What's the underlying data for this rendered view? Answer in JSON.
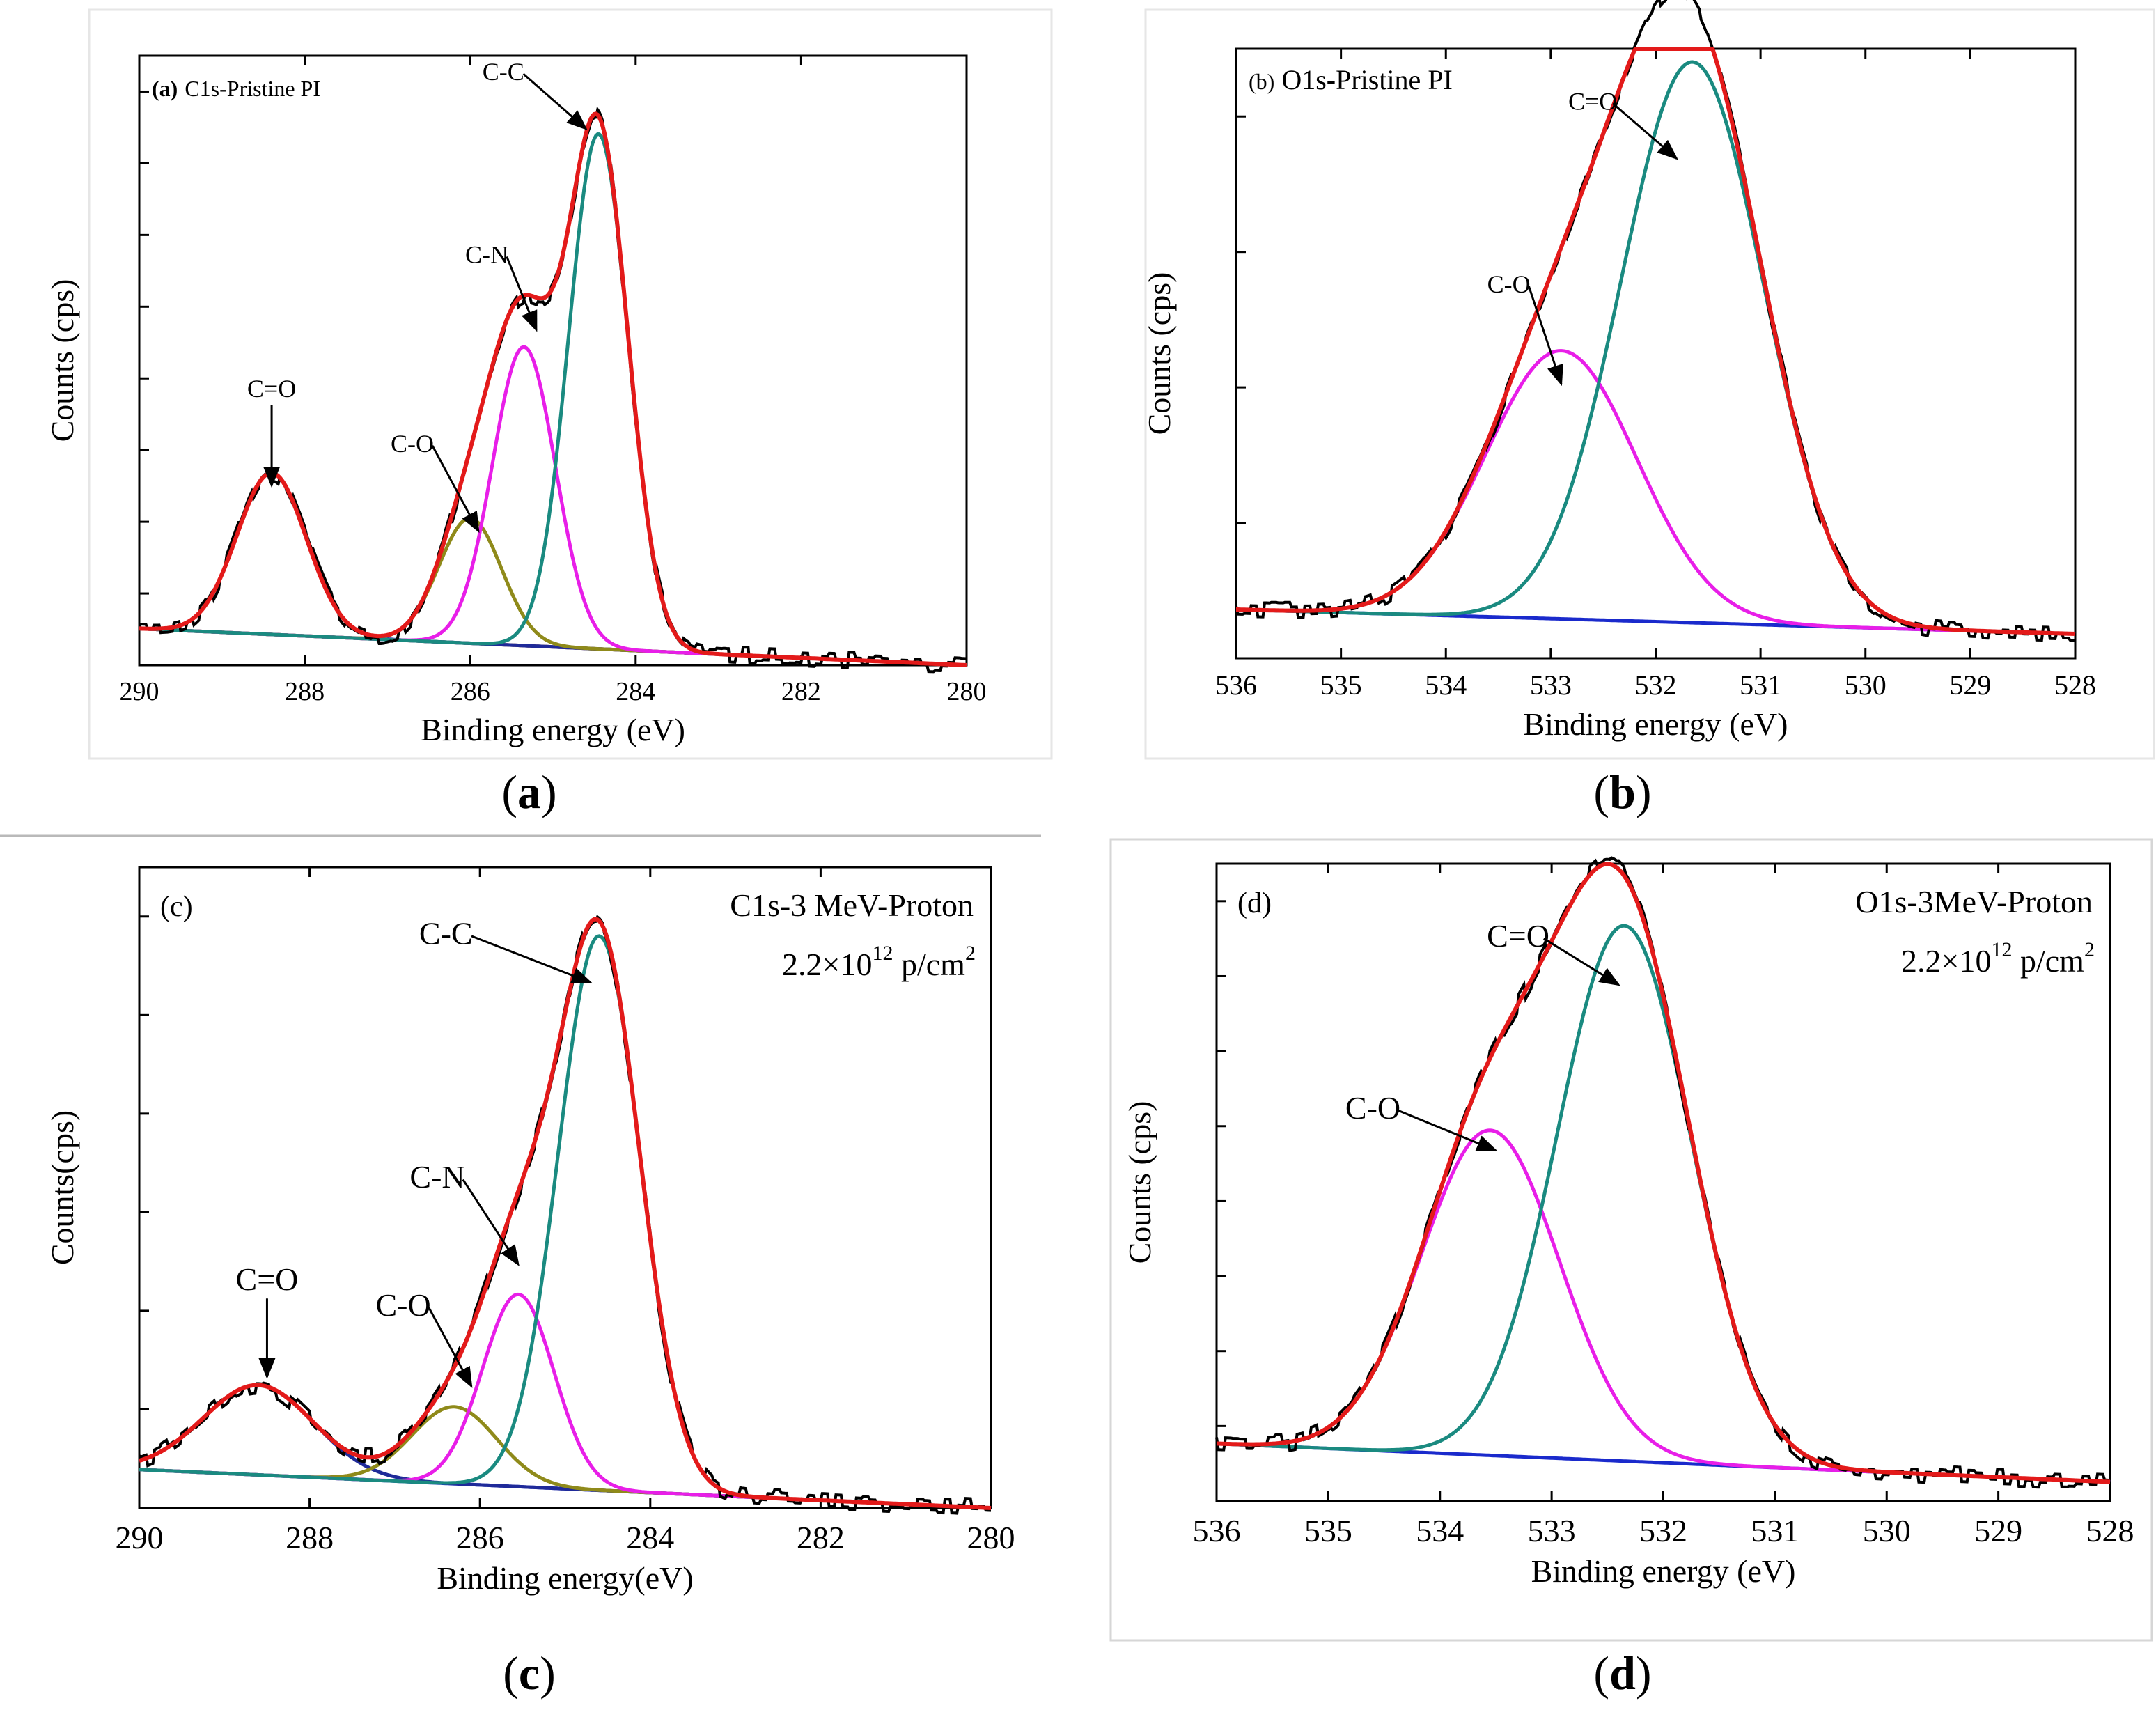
{
  "chart_data": [
    {
      "id": "a",
      "type": "line",
      "inset_label": "(a)",
      "title": "C1s-Pristine PI",
      "caption": "a",
      "xlabel": "Binding energy (eV)",
      "ylabel": "Counts (cps)",
      "xlim": [
        290,
        280
      ],
      "ylim": [
        0,
        1.0
      ],
      "xticks": [
        "290",
        "288",
        "286",
        "284",
        "282",
        "280"
      ],
      "xtick_values": [
        290,
        288,
        286,
        284,
        282,
        280
      ],
      "ytick_count": 8,
      "background": {
        "name": "background",
        "color": "#6b1a1a",
        "start": 0.06,
        "end": 0.0,
        "x_start": 290,
        "x_end": 280
      },
      "peaks": [
        {
          "name": "C=O",
          "center": 288.4,
          "height": 0.265,
          "sigma": 0.42,
          "color": "#1f2a99",
          "on_background": true
        },
        {
          "name": "C-O",
          "center": 286.0,
          "height": 0.205,
          "sigma": 0.38,
          "color": "#8f8a1a",
          "on_background": true
        },
        {
          "name": "C-N",
          "center": 285.35,
          "height": 0.49,
          "sigma": 0.38,
          "color": "#e81ee8",
          "on_background": true
        },
        {
          "name": "C-C",
          "center": 284.45,
          "height": 0.845,
          "sigma": 0.36,
          "color": "#1a8a80",
          "on_background": true
        }
      ],
      "envelope": {
        "name": "fit",
        "color": "#e31a1a"
      },
      "raw": {
        "name": "experimental",
        "color": "#000000"
      },
      "annotations": [
        {
          "text": "C=O",
          "x": 288.4,
          "y": 0.29,
          "label_x": 288.4,
          "label_y": 0.44,
          "style": "down"
        },
        {
          "text": "C-O",
          "x": 285.9,
          "y": 0.22,
          "label_x": 286.7,
          "label_y": 0.35,
          "style": "line"
        },
        {
          "text": "C-N",
          "x": 285.2,
          "y": 0.55,
          "label_x": 285.8,
          "label_y": 0.66,
          "style": "line"
        },
        {
          "text": "C-C",
          "x": 284.6,
          "y": 0.88,
          "label_x": 285.6,
          "label_y": 0.96,
          "style": "line"
        }
      ]
    },
    {
      "id": "b",
      "type": "line",
      "inset_label": "(b)",
      "title": "O1s-Pristine PI",
      "caption": "b",
      "xlabel": "Binding energy (eV)",
      "ylabel": "Counts (cps)",
      "xlim": [
        536,
        528
      ],
      "ylim": [
        0,
        1.0
      ],
      "xticks": [
        "536",
        "535",
        "534",
        "533",
        "532",
        "531",
        "530",
        "529",
        "528"
      ],
      "xtick_values": [
        536,
        535,
        534,
        533,
        532,
        531,
        530,
        529,
        528
      ],
      "ytick_count": 4,
      "background": {
        "name": "background",
        "color": "#1a2acc",
        "start": 0.08,
        "end": 0.04,
        "x_start": 536,
        "x_end": 528
      },
      "peaks": [
        {
          "name": "C-O",
          "center": 532.9,
          "height": 0.44,
          "sigma": 0.72,
          "color": "#e81ee8",
          "on_background": false
        },
        {
          "name": "C=O",
          "center": 531.65,
          "height": 0.92,
          "sigma": 0.68,
          "color": "#1a8a80",
          "on_background": false
        }
      ],
      "envelope": {
        "name": "fit",
        "color": "#e31a1a"
      },
      "raw": {
        "name": "experimental",
        "color": "#000000"
      },
      "annotations": [
        {
          "text": "C=O",
          "x": 531.8,
          "y": 0.82,
          "label_x": 532.6,
          "label_y": 0.9,
          "style": "line"
        },
        {
          "text": "C-O",
          "x": 532.9,
          "y": 0.45,
          "label_x": 533.4,
          "label_y": 0.6,
          "style": "line"
        }
      ]
    },
    {
      "id": "c",
      "type": "line",
      "inset_label": "(c)",
      "title": "C1s-3 MeV-Proton",
      "fluence": "2.2×10",
      "fluence_exp": "12",
      "fluence_unit": " p/cm",
      "fluence_unit_exp": "2",
      "caption": "c",
      "xlabel": "Binding energy(eV)",
      "ylabel": "Counts(cps)",
      "xlim": [
        290,
        280
      ],
      "ylim": [
        0,
        1.0
      ],
      "xticks": [
        "290",
        "288",
        "286",
        "284",
        "282",
        "280"
      ],
      "xtick_values": [
        290,
        288,
        286,
        284,
        282,
        280
      ],
      "ytick_count": 6,
      "background": {
        "name": "background",
        "color": "#1a2acc",
        "start": 0.06,
        "end": 0.0,
        "x_start": 290,
        "x_end": 280
      },
      "peaks": [
        {
          "name": "C=O",
          "center": 288.6,
          "height": 0.14,
          "sigma": 0.65,
          "color": "#1f2a99",
          "on_background": true
        },
        {
          "name": "C-O",
          "center": 286.3,
          "height": 0.12,
          "sigma": 0.5,
          "color": "#8f8a1a",
          "on_background": true
        },
        {
          "name": "C-N",
          "center": 285.55,
          "height": 0.3,
          "sigma": 0.42,
          "color": "#e81ee8",
          "on_background": true
        },
        {
          "name": "C-C",
          "center": 284.6,
          "height": 0.865,
          "sigma": 0.48,
          "color": "#1a8a80",
          "on_background": true
        }
      ],
      "envelope": {
        "name": "fit",
        "color": "#e31a1a"
      },
      "raw": {
        "name": "experimental",
        "color": "#000000"
      },
      "annotations": [
        {
          "text": "C=O",
          "x": 288.5,
          "y": 0.2,
          "label_x": 288.5,
          "label_y": 0.34,
          "style": "down"
        },
        {
          "text": "C-O",
          "x": 286.1,
          "y": 0.19,
          "label_x": 286.9,
          "label_y": 0.3,
          "style": "line"
        },
        {
          "text": "C-N",
          "x": 285.55,
          "y": 0.38,
          "label_x": 286.5,
          "label_y": 0.5,
          "style": "line"
        },
        {
          "text": "C-C",
          "x": 284.7,
          "y": 0.82,
          "label_x": 286.4,
          "label_y": 0.88,
          "style": "line"
        }
      ]
    },
    {
      "id": "d",
      "type": "line",
      "inset_label": "(d)",
      "title": "O1s-3MeV-Proton",
      "fluence": "2.2×10",
      "fluence_exp": "12",
      "fluence_unit": " p/cm",
      "fluence_unit_exp": "2",
      "caption": "d",
      "xlabel": "Binding energy (eV)",
      "ylabel": "Counts (cps)",
      "xlim": [
        536,
        528
      ],
      "ylim": [
        0,
        1.0
      ],
      "xticks": [
        "536",
        "535",
        "534",
        "533",
        "532",
        "531",
        "530",
        "529",
        "528"
      ],
      "xtick_values": [
        536,
        535,
        534,
        533,
        532,
        531,
        530,
        529,
        528
      ],
      "ytick_count": 8,
      "background": {
        "name": "background",
        "color": "#1a2acc",
        "start": 0.09,
        "end": 0.03,
        "x_start": 536,
        "x_end": 528
      },
      "peaks": [
        {
          "name": "C-O",
          "center": 533.55,
          "height": 0.51,
          "sigma": 0.62,
          "color": "#e81ee8",
          "on_background": false
        },
        {
          "name": "C=O",
          "center": 532.35,
          "height": 0.84,
          "sigma": 0.6,
          "color": "#1a8a80",
          "on_background": false
        }
      ],
      "envelope": {
        "name": "fit",
        "color": "#e31a1a"
      },
      "raw": {
        "name": "experimental",
        "color": "#000000"
      },
      "annotations": [
        {
          "text": "C=O",
          "x": 532.4,
          "y": 0.81,
          "label_x": 533.3,
          "label_y": 0.87,
          "style": "line"
        },
        {
          "text": "C-O",
          "x": 533.5,
          "y": 0.55,
          "label_x": 534.6,
          "label_y": 0.6,
          "style": "line"
        }
      ]
    }
  ]
}
